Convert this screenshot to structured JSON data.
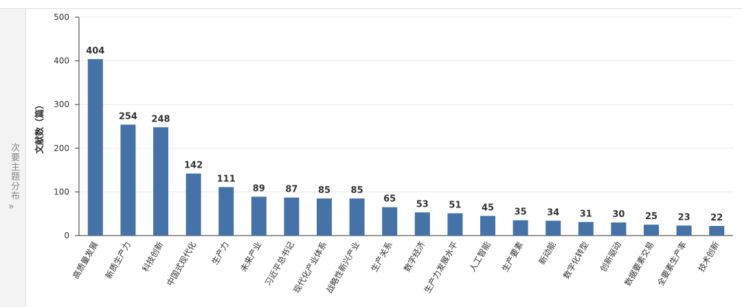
{
  "sidebar": {
    "label": "次要主题分布",
    "icon": "»"
  },
  "chart_data": {
    "type": "bar",
    "y_label": "文献数（篇）",
    "categories": [
      "高质量发展",
      "新质生产力",
      "科技创新",
      "中国式现代化",
      "生产力",
      "未来产业",
      "习近平总书记",
      "现代化产业体系",
      "战略性新兴产业",
      "生产关系",
      "数字经济",
      "生产力发展水平",
      "人工智能",
      "生产要素",
      "新动能",
      "数字化转型",
      "创新驱动",
      "数据要素交易",
      "全要素生产率",
      "技术创新"
    ],
    "values": [
      404,
      254,
      248,
      142,
      111,
      89,
      87,
      85,
      85,
      65,
      53,
      51,
      45,
      35,
      34,
      31,
      30,
      25,
      23,
      22
    ],
    "color": "#4572a7",
    "ylim": [
      0,
      500
    ],
    "yticks": [
      0,
      100,
      200,
      300,
      400,
      500
    ],
    "grid": true
  }
}
